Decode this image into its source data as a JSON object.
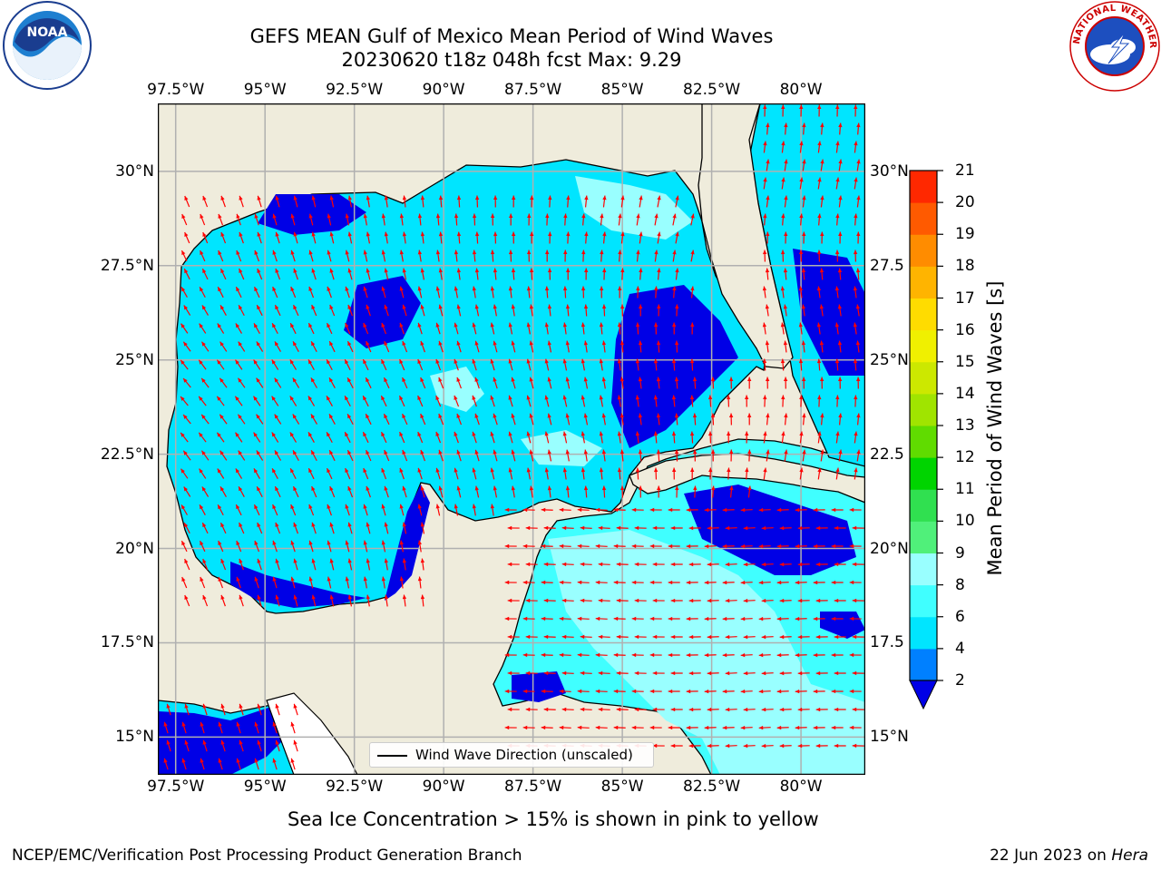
{
  "title": {
    "line1": "GEFS MEAN Gulf of Mexico Mean Period of Wind Waves",
    "line2": "20230620 t18z 048h fcst   Max: 9.29"
  },
  "logos": {
    "left": "noaa-logo",
    "left_text": "NOAA",
    "right": "nws-logo",
    "right_text": "NATIONAL WEATHER SERVICE"
  },
  "map": {
    "longitude_ticks": [
      "97.5°W",
      "95°W",
      "92.5°W",
      "90°W",
      "87.5°W",
      "85°W",
      "82.5°W",
      "80°W"
    ],
    "latitude_ticks_left": [
      "30°N",
      "27.5°N",
      "25°N",
      "22.5°N",
      "20°N",
      "17.5°N",
      "15°N"
    ],
    "latitude_ticks_right": [
      "30°N",
      "27.5",
      "25°N",
      "22.5",
      "20°N",
      "17.5",
      "15°N"
    ],
    "lon_range": [
      -98.0,
      -78.2
    ],
    "lat_range": [
      14.0,
      31.8
    ],
    "colors": {
      "land": "#efecdc",
      "no_data": "#ffffff",
      "grid": "#b0b0b0",
      "arrows": "#ff0000"
    },
    "gridlines": true
  },
  "colorbar": {
    "label": "Mean Period of Wind Waves [s]",
    "ticks": [
      "21",
      "20",
      "19",
      "18",
      "17",
      "16",
      "15",
      "14",
      "13",
      "12",
      "11",
      "10",
      "9",
      "8",
      "6",
      "4",
      "2"
    ],
    "levels": [
      2,
      4,
      6,
      8,
      9,
      10,
      11,
      12,
      13,
      14,
      15,
      16,
      17,
      18,
      19,
      20,
      21
    ],
    "colors": [
      "#0000e6",
      "#0080ff",
      "#00e5ff",
      "#40ffff",
      "#99ffff",
      "#50f07a",
      "#30e050",
      "#00d400",
      "#60dc00",
      "#a0e400",
      "#cce800",
      "#f0f000",
      "#ffdc00",
      "#ffb400",
      "#ff8c00",
      "#ff5a00",
      "#ff2800",
      "#ff0000"
    ],
    "extend": "min"
  },
  "legend": {
    "label": "Wind Wave Direction (unscaled)"
  },
  "ice_note": "Sea Ice Concentration > 15% is shown in pink to yellow",
  "footer": {
    "left": "NCEP/EMC/Verification Post Processing Product Generation Branch",
    "right_date": "22 Jun 2023 on ",
    "right_host": "Hera"
  }
}
